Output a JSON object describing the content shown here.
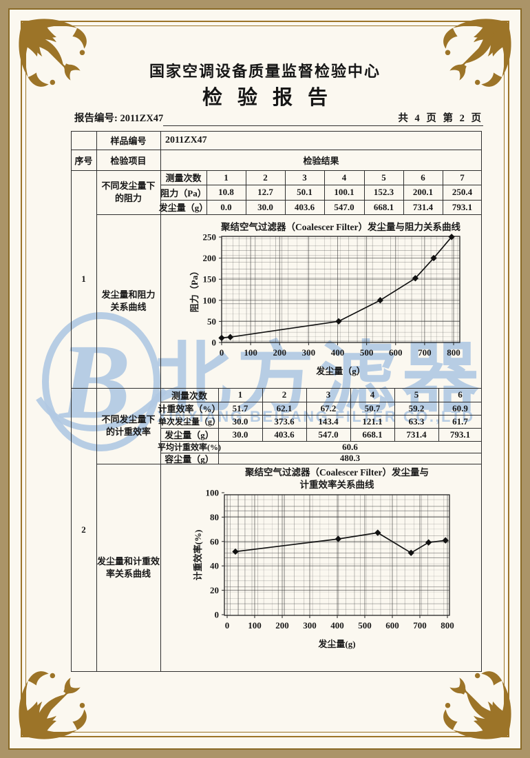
{
  "header": {
    "org_title": "国家空调设备质量监督检验中心",
    "report_title": "检验报告",
    "report_no": "报告编号: 2011ZX47",
    "page_info": "共 4 页 第 2 页"
  },
  "table": {
    "sample_label": "样品编号",
    "sample_value": "2011ZX47",
    "col_seq": "序号",
    "col_item": "检验项目",
    "col_result": "检验结果",
    "sections": [
      {
        "seq": "1",
        "data_item_lines": [
          "不同发尘量下",
          "的阻力"
        ],
        "curve_item_lines": [
          "发尘量和阻力",
          "关系曲线"
        ],
        "table": {
          "rows": [
            {
              "label": "测量次数",
              "values": [
                "1",
                "2",
                "3",
                "4",
                "5",
                "6",
                "7"
              ]
            },
            {
              "label": "阻力（Pa）",
              "values": [
                "10.8",
                "12.7",
                "50.1",
                "100.1",
                "152.3",
                "200.1",
                "250.4"
              ]
            },
            {
              "label": "发尘量（g）",
              "values": [
                "0.0",
                "30.0",
                "403.6",
                "547.0",
                "668.1",
                "731.4",
                "793.1"
              ]
            }
          ]
        }
      },
      {
        "seq": "2",
        "data_item_lines": [
          "不同发尘量下",
          "的计重效率"
        ],
        "curve_item_lines": [
          "发尘量和计重效",
          "率关系曲线"
        ],
        "table": {
          "rows": [
            {
              "label": "测量次数",
              "values": [
                "1",
                "2",
                "3",
                "4",
                "5",
                "6"
              ]
            },
            {
              "label": "计重效率（%）",
              "values": [
                "51.7",
                "62.1",
                "67.2",
                "50.7",
                "59.2",
                "60.9"
              ]
            },
            {
              "label": "单次发尘量（g）",
              "values": [
                "30.0",
                "373.6",
                "143.4",
                "121.1",
                "63.3",
                "61.7"
              ]
            },
            {
              "label": "发尘量（g）",
              "values": [
                "30.0",
                "403.6",
                "547.0",
                "668.1",
                "731.4",
                "793.1"
              ]
            }
          ],
          "summary_rows": [
            {
              "label": "平均计重效率(%)",
              "value": "60.6"
            },
            {
              "label": "容尘量（g）",
              "value": "480.3"
            }
          ]
        }
      }
    ]
  },
  "watermark": {
    "logo_letter": "B",
    "cn": "北方滤器",
    "en": "XINXIANG BEIFANG FILTER CO.,LTD",
    "color": "#b1c9e3"
  },
  "chart_data": [
    {
      "type": "line",
      "title_lines": [
        "聚结空气过滤器（Coalescer Filter）发尘量与阻力关系曲线"
      ],
      "xlabel": "发尘量（g）",
      "ylabel": "阻力（Pa）",
      "x": [
        0,
        30.0,
        403.6,
        547.0,
        668.1,
        731.4,
        793.1
      ],
      "y": [
        10.8,
        12.7,
        50.1,
        100.1,
        152.3,
        200.1,
        250.4
      ],
      "xlim": [
        0,
        800
      ],
      "ylim": [
        0,
        250
      ],
      "xticks": [
        0,
        100,
        200,
        300,
        400,
        500,
        600,
        700,
        800
      ],
      "yticks": [
        0,
        50,
        100,
        150,
        200,
        250
      ],
      "grid": true,
      "legend": "none",
      "marker": "diamond"
    },
    {
      "type": "line",
      "title_lines": [
        "聚结空气过滤器（Coalescer Filter）发尘量与",
        "计重效率关系曲线"
      ],
      "xlabel": "发尘量(g)",
      "ylabel": "计重效率(%)",
      "x": [
        30.0,
        403.6,
        547.0,
        668.1,
        731.4,
        793.1
      ],
      "y": [
        51.7,
        62.1,
        67.2,
        50.7,
        59.2,
        60.9
      ],
      "xlim": [
        0,
        800
      ],
      "ylim": [
        0,
        100
      ],
      "xticks": [
        0,
        100,
        200,
        300,
        400,
        500,
        600,
        700,
        800
      ],
      "yticks": [
        0,
        20,
        40,
        60,
        80,
        100
      ],
      "grid": true,
      "legend": "none",
      "marker": "diamond"
    }
  ]
}
